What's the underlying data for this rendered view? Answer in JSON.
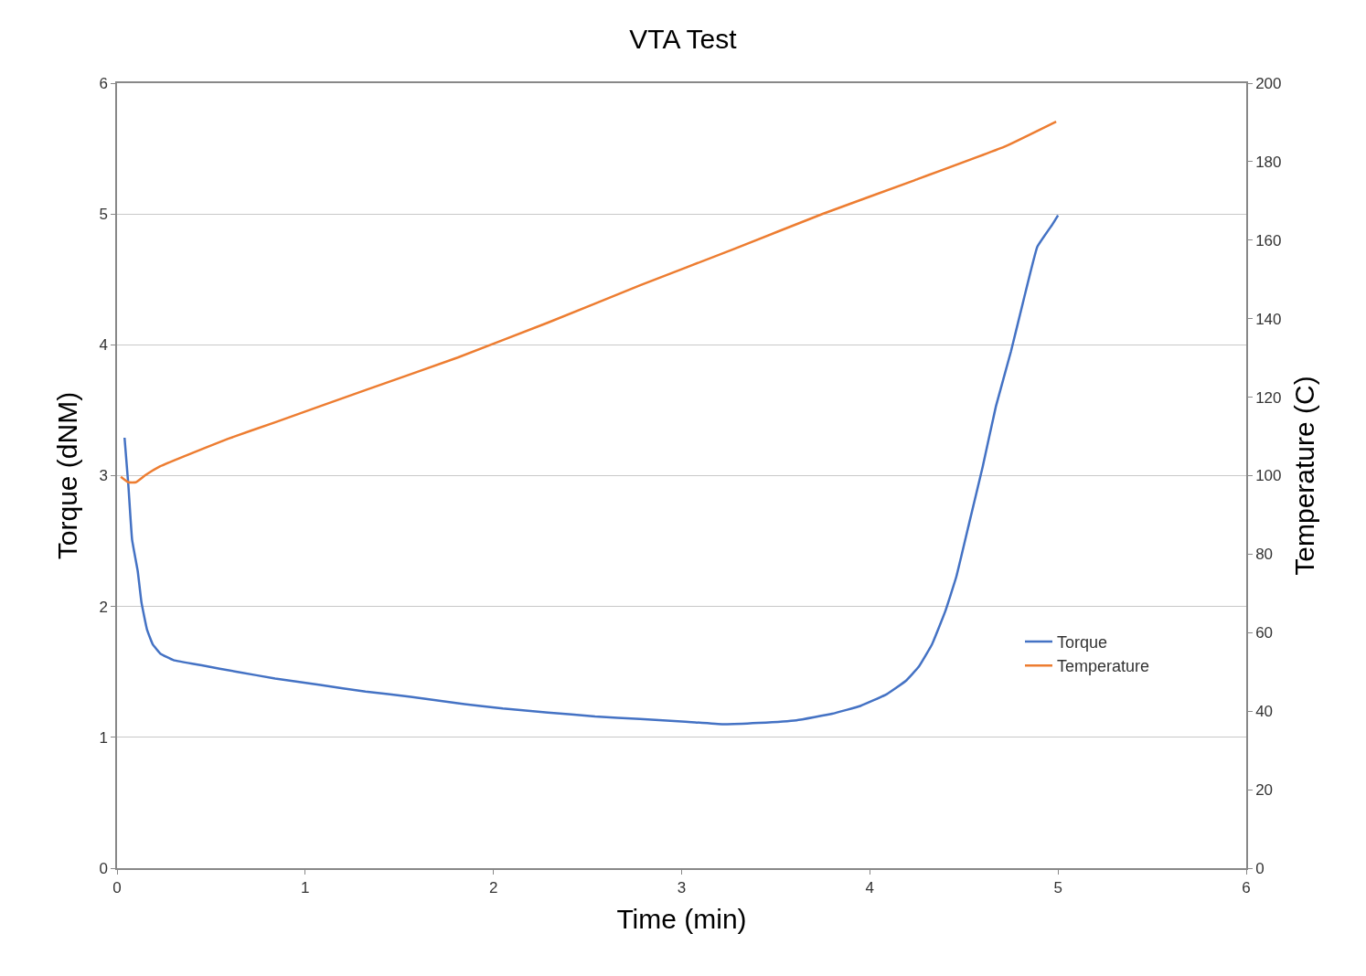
{
  "chart_data": {
    "type": "line",
    "title": "VTA Test",
    "xlabel": "Time (min)",
    "ylabel": "Torque (dNM)",
    "y2label": "Temperature (C)",
    "xlim": [
      0,
      6
    ],
    "xticks": [
      0,
      1,
      2,
      3,
      4,
      5,
      6
    ],
    "ylim": [
      0,
      6
    ],
    "yticks": [
      0,
      1,
      2,
      3,
      4,
      5,
      6
    ],
    "y2lim": [
      0,
      200
    ],
    "y2ticks": [
      0,
      20,
      40,
      60,
      80,
      100,
      120,
      140,
      160,
      180,
      200
    ],
    "grid": "y",
    "legend": "bottom right",
    "marker": "none",
    "line_style": "solid",
    "series": [
      {
        "name": "Torque",
        "color": "#4472c4",
        "x": [
          0.04,
          0.06,
          0.08,
          0.11,
          0.13,
          0.16,
          0.19,
          0.23,
          0.3,
          0.45,
          0.64,
          0.84,
          1.08,
          1.32,
          1.56,
          1.81,
          2.05,
          2.29,
          2.54,
          2.78,
          3.02,
          3.22,
          3.41,
          3.61,
          3.8,
          3.95,
          4.09,
          4.19,
          4.26,
          4.33,
          4.4,
          4.46,
          4.53,
          4.6,
          4.67,
          4.75,
          4.82,
          4.89,
          4.97,
          5.0
        ],
        "values": [
          3.29,
          2.93,
          2.51,
          2.27,
          2.03,
          1.82,
          1.71,
          1.64,
          1.59,
          1.55,
          1.5,
          1.45,
          1.4,
          1.35,
          1.31,
          1.26,
          1.22,
          1.19,
          1.16,
          1.14,
          1.12,
          1.1,
          1.11,
          1.13,
          1.18,
          1.24,
          1.33,
          1.43,
          1.54,
          1.71,
          1.96,
          2.23,
          2.65,
          3.07,
          3.53,
          3.95,
          4.36,
          4.75,
          4.92,
          4.99
        ]
      },
      {
        "name": "Temperature",
        "color": "#ed7d31",
        "axis": "y2",
        "x": [
          0.02,
          0.06,
          0.1,
          0.15,
          0.23,
          0.35,
          0.59,
          0.84,
          1.32,
          1.81,
          2.29,
          2.78,
          3.27,
          3.75,
          4.24,
          4.72,
          4.99
        ],
        "values": [
          99.7,
          98.3,
          98.3,
          100.1,
          102.4,
          104.8,
          109.4,
          113.6,
          121.8,
          130.1,
          139.0,
          148.5,
          157.6,
          166.7,
          175.3,
          183.9,
          190.2
        ]
      }
    ]
  }
}
